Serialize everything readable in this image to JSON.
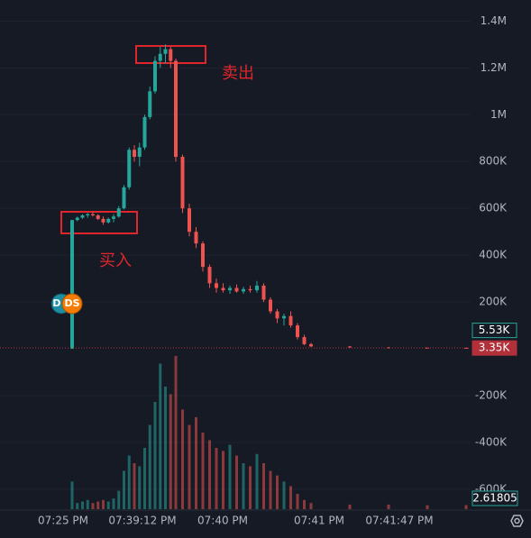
{
  "chart_data": {
    "type": "candlestick",
    "ylim": [
      -685000,
      1490000
    ],
    "yticks": [
      {
        "value": 1400000,
        "label": "1.4M"
      },
      {
        "value": 1200000,
        "label": "1.2M"
      },
      {
        "value": 1000000,
        "label": "1M"
      },
      {
        "value": 800000,
        "label": "800K"
      },
      {
        "value": 600000,
        "label": "600K"
      },
      {
        "value": 400000,
        "label": "400K"
      },
      {
        "value": 200000,
        "label": "200K"
      },
      {
        "value": -200000,
        "label": "-200K"
      },
      {
        "value": -400000,
        "label": "-400K"
      },
      {
        "value": -600000,
        "label": "-600K"
      }
    ],
    "open": [
      0,
      550000,
      560000,
      570000,
      575000,
      570000,
      555000,
      540000,
      555000,
      565000,
      600000,
      690000,
      850000,
      820000,
      860000,
      990000,
      1100000,
      1230000,
      1260000,
      1280000,
      1230000,
      820000,
      600000,
      500000,
      450000,
      350000,
      280000,
      260000,
      250000,
      260000,
      245000,
      255000,
      250000,
      270000,
      210000,
      160000,
      130000,
      140000,
      100000,
      50000,
      20000,
      10000,
      6000,
      5000,
      4000
    ],
    "high": [
      550000,
      565000,
      575000,
      580000,
      585000,
      575000,
      565000,
      560000,
      575000,
      610000,
      700000,
      860000,
      870000,
      880000,
      1000000,
      1120000,
      1250000,
      1290000,
      1300000,
      1290000,
      1240000,
      830000,
      620000,
      520000,
      460000,
      360000,
      300000,
      280000,
      270000,
      275000,
      265000,
      270000,
      290000,
      280000,
      220000,
      170000,
      150000,
      160000,
      110000,
      60000,
      25000,
      12000,
      8000,
      6000,
      6000
    ],
    "low": [
      0,
      545000,
      555000,
      560000,
      565000,
      550000,
      530000,
      535000,
      540000,
      560000,
      595000,
      680000,
      800000,
      780000,
      850000,
      980000,
      1090000,
      1200000,
      1220000,
      1200000,
      800000,
      580000,
      480000,
      430000,
      330000,
      260000,
      240000,
      240000,
      235000,
      240000,
      235000,
      240000,
      240000,
      200000,
      150000,
      110000,
      100000,
      90000,
      40000,
      15000,
      8000,
      4000,
      3000,
      3000,
      3000
    ],
    "close": [
      550000,
      560000,
      570000,
      575000,
      570000,
      555000,
      540000,
      555000,
      565000,
      600000,
      690000,
      850000,
      820000,
      860000,
      990000,
      1100000,
      1230000,
      1260000,
      1280000,
      1230000,
      820000,
      600000,
      500000,
      450000,
      350000,
      280000,
      260000,
      250000,
      260000,
      245000,
      255000,
      250000,
      270000,
      210000,
      160000,
      130000,
      140000,
      100000,
      50000,
      20000,
      10000,
      6000,
      5000,
      4000,
      3350
    ],
    "volume": [
      18,
      4,
      5,
      6,
      4,
      5,
      6,
      5,
      7,
      12,
      25,
      35,
      30,
      28,
      40,
      55,
      70,
      95,
      80,
      75,
      100,
      65,
      55,
      60,
      50,
      45,
      40,
      38,
      42,
      35,
      30,
      28,
      36,
      30,
      25,
      22,
      18,
      15,
      10,
      6,
      4,
      3,
      3,
      2.5,
      2.61805
    ],
    "xlabels": [
      "07:25 PM",
      "07:39:12 PM",
      "07:40 PM",
      "07:41 PM",
      "07:41:47 PM"
    ],
    "price_labels": [
      {
        "value": 5530,
        "label": "5.53K",
        "color": "#26a69a"
      },
      {
        "value": 3350,
        "label": "3.35K",
        "color": "#b2303a"
      }
    ],
    "annotations": [
      "买入",
      "卖出"
    ],
    "markers": [
      "D",
      "DS"
    ],
    "up_color": "#26a69a",
    "down_color": "#ef5350"
  }
}
